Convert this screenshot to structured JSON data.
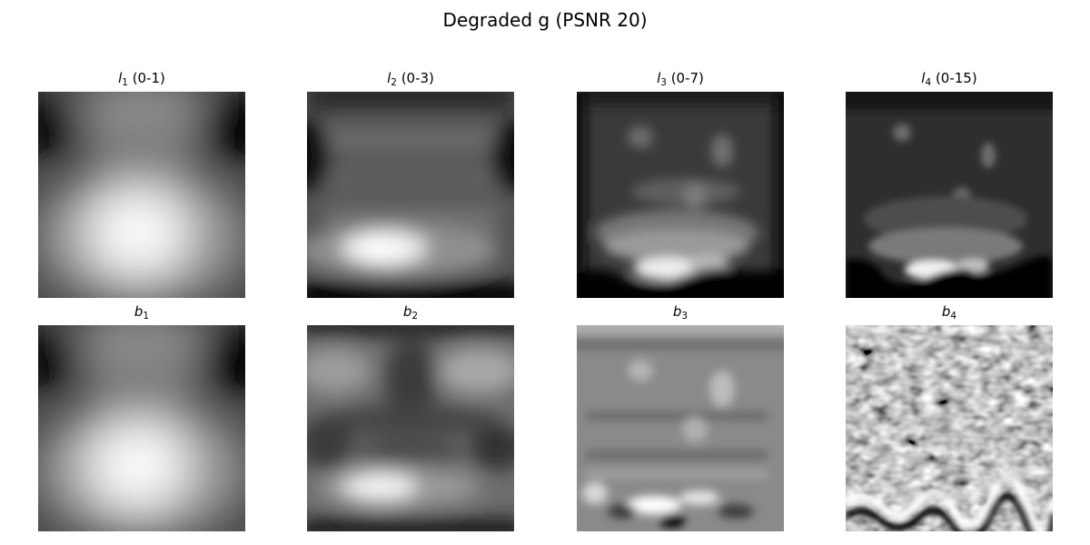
{
  "figure": {
    "title": "Degraded g (PSNR 20)"
  },
  "panels": [
    {
      "symbol": "l",
      "index": "1",
      "range": "(0-1)"
    },
    {
      "symbol": "l",
      "index": "2",
      "range": "(0-3)"
    },
    {
      "symbol": "l",
      "index": "3",
      "range": "(0-7)"
    },
    {
      "symbol": "l",
      "index": "4",
      "range": "(0-15)"
    },
    {
      "symbol": "b",
      "index": "1",
      "range": ""
    },
    {
      "symbol": "b",
      "index": "2",
      "range": ""
    },
    {
      "symbol": "b",
      "index": "3",
      "range": ""
    },
    {
      "symbol": "b",
      "index": "4",
      "range": ""
    }
  ],
  "colormap": "gray"
}
